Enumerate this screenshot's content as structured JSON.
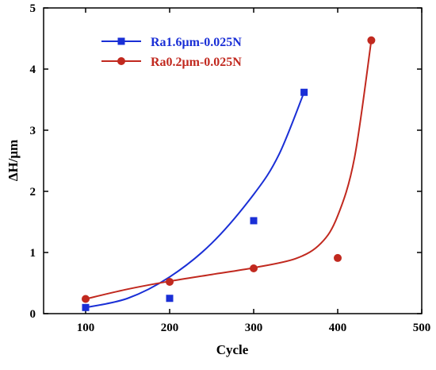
{
  "chart_data": {
    "type": "scatter",
    "title": "",
    "xlabel": "Cycle",
    "ylabel": "ΔH/μm",
    "xlim": [
      50,
      500
    ],
    "ylim": [
      0,
      5
    ],
    "xticks": [
      100,
      200,
      300,
      400,
      500
    ],
    "yticks": [
      0,
      1,
      2,
      3,
      4,
      5
    ],
    "grid": false,
    "legend_position": "top-left",
    "series": [
      {
        "name": "Ra1.6μm-0.025N",
        "color": "#1a2fd6",
        "marker": "square",
        "points": [
          {
            "x": 100,
            "y": 0.1
          },
          {
            "x": 200,
            "y": 0.25
          },
          {
            "x": 300,
            "y": 1.52
          },
          {
            "x": 360,
            "y": 3.62
          }
        ],
        "fit_curve": [
          {
            "x": 100,
            "y": 0.1
          },
          {
            "x": 150,
            "y": 0.25
          },
          {
            "x": 200,
            "y": 0.6
          },
          {
            "x": 250,
            "y": 1.15
          },
          {
            "x": 300,
            "y": 1.95
          },
          {
            "x": 330,
            "y": 2.6
          },
          {
            "x": 360,
            "y": 3.62
          }
        ]
      },
      {
        "name": "Ra0.2μm-0.025N",
        "color": "#c1291f",
        "marker": "circle",
        "points": [
          {
            "x": 100,
            "y": 0.24
          },
          {
            "x": 200,
            "y": 0.52
          },
          {
            "x": 300,
            "y": 0.74
          },
          {
            "x": 400,
            "y": 0.91
          },
          {
            "x": 440,
            "y": 4.47
          }
        ],
        "fit_curve": [
          {
            "x": 100,
            "y": 0.24
          },
          {
            "x": 150,
            "y": 0.4
          },
          {
            "x": 200,
            "y": 0.53
          },
          {
            "x": 250,
            "y": 0.64
          },
          {
            "x": 300,
            "y": 0.75
          },
          {
            "x": 350,
            "y": 0.9
          },
          {
            "x": 380,
            "y": 1.15
          },
          {
            "x": 400,
            "y": 1.6
          },
          {
            "x": 420,
            "y": 2.55
          },
          {
            "x": 440,
            "y": 4.47
          }
        ]
      }
    ]
  }
}
